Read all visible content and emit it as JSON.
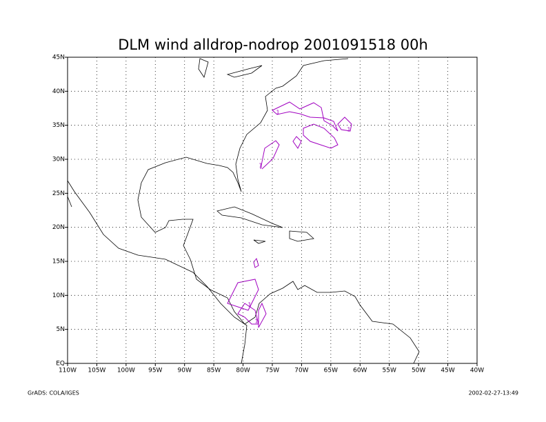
{
  "chart_data": {
    "type": "map",
    "title": "DLM wind alldrop-nodrop 2001091518 00h",
    "xlim": [
      -110,
      -40
    ],
    "xticks": [
      {
        "value": -110,
        "label": "110W"
      },
      {
        "value": -105,
        "label": "105W"
      },
      {
        "value": -100,
        "label": "100W"
      },
      {
        "value": -95,
        "label": "95W"
      },
      {
        "value": -90,
        "label": "90W"
      },
      {
        "value": -85,
        "label": "85W"
      },
      {
        "value": -80,
        "label": "80W"
      },
      {
        "value": -75,
        "label": "75W"
      },
      {
        "value": -70,
        "label": "70W"
      },
      {
        "value": -65,
        "label": "65W"
      },
      {
        "value": -60,
        "label": "60W"
      },
      {
        "value": -55,
        "label": "55W"
      },
      {
        "value": -50,
        "label": "50W"
      },
      {
        "value": -45,
        "label": "45W"
      },
      {
        "value": -40,
        "label": "40W"
      }
    ],
    "ylim": [
      0,
      45
    ],
    "yticks": [
      {
        "value": 0,
        "label": "EQ"
      },
      {
        "value": 5,
        "label": "5N"
      },
      {
        "value": 10,
        "label": "10N"
      },
      {
        "value": 15,
        "label": "15N"
      },
      {
        "value": 20,
        "label": "20N"
      },
      {
        "value": 25,
        "label": "25N"
      },
      {
        "value": 30,
        "label": "30N"
      },
      {
        "value": 35,
        "label": "35N"
      },
      {
        "value": 40,
        "label": "40N"
      },
      {
        "value": 45,
        "label": "45N"
      }
    ],
    "grid": true,
    "contour_level": 1,
    "contour_color": "#a000c0",
    "footer_left": "GrADS: COLA/IGES",
    "footer_right": "2002-02-27-13:49"
  }
}
